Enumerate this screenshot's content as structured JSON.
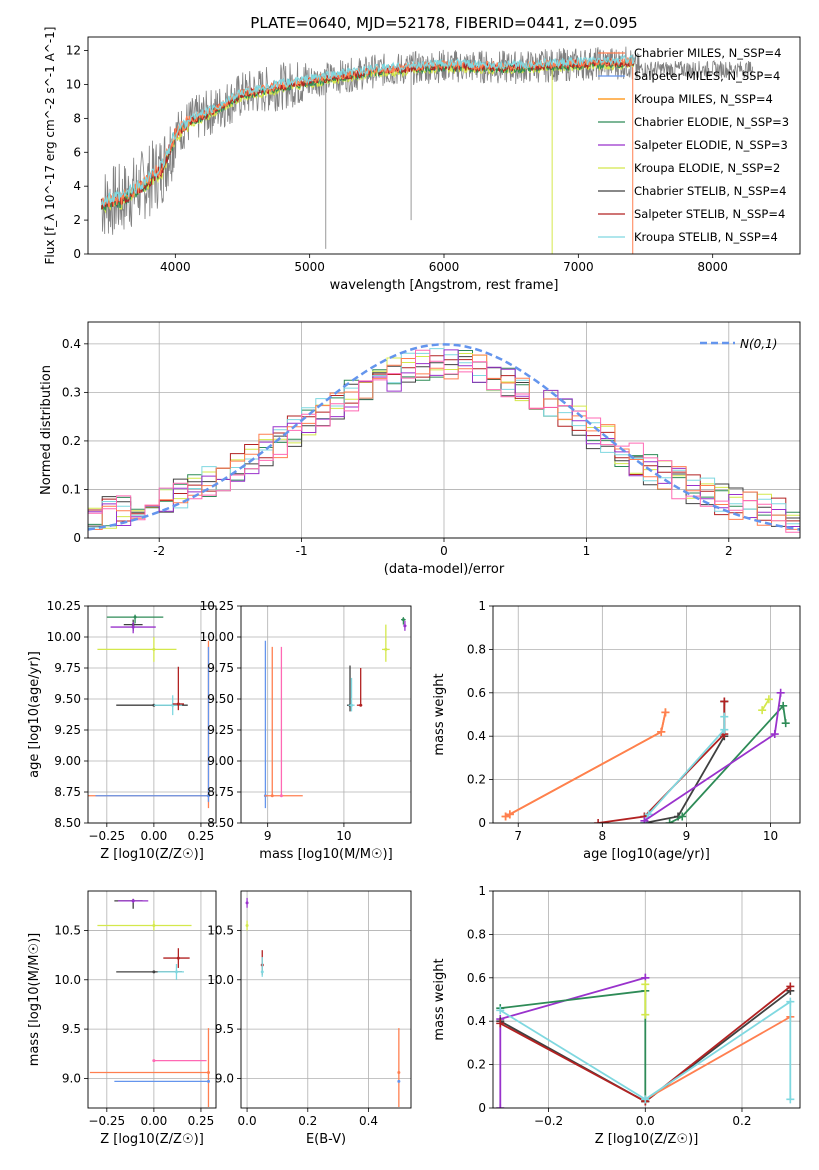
{
  "figure": {
    "title": "PLATE=0640, MJD=52178, FIBERID=0441, z=0.095"
  },
  "colors": {
    "observed": "#808080",
    "chabrier_miles": "#ff7f50",
    "salpeter_miles": "#6495ed",
    "kroupa_miles": "#ff8c00",
    "chabrier_elodie": "#2e8b57",
    "salpeter_elodie": "#9932cc",
    "kroupa_elodie": "#d4e84c",
    "chabrier_stelib": "#404040",
    "salpeter_stelib": "#b22222",
    "kroupa_stelib": "#7fd8e0",
    "normal": "#6495ed",
    "hist_pink": "#ff69b4"
  },
  "chart_data": [
    {
      "id": "spectrum",
      "type": "line",
      "xlabel": "wavelength [Angstrom, rest frame]",
      "ylabel": "Flux [f_λ 10^-17 erg cm^-2 s^-1 A^-1]",
      "xlim": [
        3350,
        8650
      ],
      "ylim": [
        0,
        12.8
      ],
      "xticks": [
        4000,
        5000,
        6000,
        7000,
        8000
      ],
      "yticks": [
        0,
        2,
        4,
        6,
        8,
        10,
        12
      ],
      "continuum": {
        "x": [
          3450,
          3600,
          3750,
          3900,
          4000,
          4100,
          4300,
          4500,
          4800,
          5000,
          5500,
          6000,
          6500,
          7000,
          7400
        ],
        "y": [
          3.0,
          3.2,
          4.0,
          5.0,
          7.0,
          7.8,
          8.5,
          9.4,
          9.9,
          10.2,
          10.8,
          11.1,
          11.0,
          11.2,
          11.3
        ]
      },
      "observed_extends_to": 8300,
      "legend": [
        {
          "label": "Chabrier MILES, N_SSP=4",
          "color": "#ff7f50"
        },
        {
          "label": "Salpeter MILES, N_SSP=4",
          "color": "#6495ed"
        },
        {
          "label": "Kroupa MILES, N_SSP=4",
          "color": "#ff8c00"
        },
        {
          "label": "Chabrier ELODIE, N_SSP=3",
          "color": "#2e8b57"
        },
        {
          "label": "Salpeter ELODIE, N_SSP=3",
          "color": "#9932cc"
        },
        {
          "label": "Kroupa ELODIE, N_SSP=2",
          "color": "#d4e84c"
        },
        {
          "label": "Chabrier STELIB, N_SSP=4",
          "color": "#404040"
        },
        {
          "label": "Salpeter STELIB, N_SSP=4",
          "color": "#b22222"
        },
        {
          "label": "Kroupa STELIB, N_SSP=4",
          "color": "#7fd8e0"
        }
      ],
      "legend_placement": "upper right",
      "grid": false
    },
    {
      "id": "residuals",
      "type": "area",
      "xlabel": "(data-model)/error",
      "ylabel": "Normed distribution",
      "xlim": [
        -2.5,
        2.5
      ],
      "ylim": [
        0,
        0.445
      ],
      "xticks": [
        -2,
        -1,
        0,
        1,
        2
      ],
      "yticks": [
        0.0,
        0.1,
        0.2,
        0.3,
        0.4
      ],
      "bins": 50,
      "hist_color_keys": [
        "chabrier_elodie",
        "kroupa_elodie",
        "chabrier_stelib",
        "salpeter_stelib",
        "kroupa_stelib",
        "salpeter_elodie",
        "chabrier_miles",
        "hist_pink"
      ],
      "legend": [
        {
          "label": "N(0,1)",
          "color": "#6495ed"
        }
      ],
      "legend_placement": "upper right",
      "grid": true
    },
    {
      "id": "age_vs_Z",
      "type": "scatter",
      "xlabel": "Z [log10(Z/Z☉)]",
      "ylabel": "age  [log10(age/yr)]",
      "xlim": [
        -0.35,
        0.33
      ],
      "ylim": [
        8.5,
        10.25
      ],
      "xticks": [
        -0.25,
        0.0,
        0.25
      ],
      "xtick_labels": [
        "−0.25",
        "0.00",
        "0.25"
      ],
      "yticks": [
        8.5,
        8.75,
        9.0,
        9.25,
        9.5,
        9.75,
        10.0,
        10.25
      ],
      "ytick_labels": [
        "8.50",
        "8.75",
        "9.00",
        "9.25",
        "9.50",
        "9.75",
        "10.00",
        "10.25"
      ],
      "points": [
        {
          "key": "chabrier_elodie",
          "x": -0.1,
          "y": 10.16,
          "xerr": [
            0.15,
            0.15
          ],
          "yerr": [
            0.05,
            0.02
          ]
        },
        {
          "key": "chabrier_stelib",
          "x": -0.11,
          "y": 10.1,
          "xerr": [
            0.05,
            0.05
          ],
          "yerr": [
            0.05,
            0.04
          ]
        },
        {
          "key": "salpeter_elodie",
          "x": -0.11,
          "y": 10.08,
          "xerr": [
            0.12,
            0.12
          ],
          "yerr": [
            0.05,
            0.04
          ]
        },
        {
          "key": "kroupa_elodie",
          "x": 0.0,
          "y": 9.9,
          "xerr": [
            0.3,
            0.12
          ],
          "yerr": [
            0.1,
            0.1
          ]
        },
        {
          "key": "chabrier_stelib",
          "x": 0.0,
          "y": 9.45,
          "xerr": [
            0.2,
            0.18
          ],
          "yerr": [
            0.0,
            0.0
          ]
        },
        {
          "key": "kroupa_stelib",
          "x": 0.1,
          "y": 9.45,
          "xerr": [
            0.1,
            0.05
          ],
          "yerr": [
            0.08,
            0.08
          ]
        },
        {
          "key": "salpeter_stelib",
          "x": 0.13,
          "y": 9.46,
          "xerr": [
            0.03,
            0.03
          ],
          "yerr": [
            0.05,
            0.3
          ]
        },
        {
          "key": "chabrier_miles",
          "x": 0.29,
          "y": 8.72,
          "xerr": [
            0.64,
            0.0
          ],
          "yerr": [
            0.1,
            1.25
          ]
        },
        {
          "key": "salpeter_miles",
          "x": 0.29,
          "y": 8.72,
          "xerr": [
            0.6,
            0.0
          ],
          "yerr": [
            0.05,
            1.2
          ]
        }
      ],
      "grid": true
    },
    {
      "id": "age_vs_mass",
      "type": "scatter",
      "xlabel": "mass [log10(M/M☉)]",
      "ylabel": "",
      "xlim": [
        8.65,
        10.88
      ],
      "ylim": [
        8.5,
        10.25
      ],
      "xticks": [
        9,
        10
      ],
      "yticks": [
        8.5,
        8.75,
        9.0,
        9.25,
        9.5,
        9.75,
        10.0,
        10.25
      ],
      "ytick_labels": [
        "8.50",
        "8.75",
        "9.00",
        "9.25",
        "9.50",
        "9.75",
        "10.00",
        "10.25"
      ],
      "points": [
        {
          "key": "chabrier_elodie",
          "x": 10.78,
          "y": 10.14,
          "xerr": [
            0.03,
            0.03
          ],
          "yerr": [
            0.04,
            0.02
          ]
        },
        {
          "key": "salpeter_elodie",
          "x": 10.8,
          "y": 10.09,
          "xerr": [
            0.02,
            0.02
          ],
          "yerr": [
            0.04,
            0.04
          ]
        },
        {
          "key": "kroupa_elodie",
          "x": 10.55,
          "y": 9.9,
          "xerr": [
            0.05,
            0.05
          ],
          "yerr": [
            0.1,
            0.2
          ]
        },
        {
          "key": "chabrier_stelib",
          "x": 10.08,
          "y": 9.45,
          "xerr": [
            0.04,
            0.04
          ],
          "yerr": [
            0.05,
            0.32
          ]
        },
        {
          "key": "kroupa_stelib",
          "x": 10.1,
          "y": 9.45,
          "xerr": [
            0.04,
            0.04
          ],
          "yerr": [
            0.05,
            0.22
          ]
        },
        {
          "key": "salpeter_stelib",
          "x": 10.22,
          "y": 9.45,
          "xerr": [
            0.05,
            0.02
          ],
          "yerr": [
            0.0,
            0.3
          ]
        },
        {
          "key": "salpeter_miles",
          "x": 8.97,
          "y": 8.72,
          "xerr": [
            0.0,
            0.0
          ],
          "yerr": [
            0.1,
            1.25
          ]
        },
        {
          "key": "chabrier_miles",
          "x": 9.06,
          "y": 8.72,
          "xerr": [
            0.1,
            0.4
          ],
          "yerr": [
            0.0,
            1.2
          ]
        },
        {
          "key": "hist_pink",
          "x": 9.18,
          "y": 8.72,
          "xerr": [
            0.0,
            0.0
          ],
          "yerr": [
            0.0,
            1.2
          ]
        }
      ],
      "grid": true
    },
    {
      "id": "weight_vs_age",
      "type": "line",
      "xlabel": "age  [log10(age/yr)]",
      "ylabel": "mass weight",
      "xlim": [
        6.7,
        10.35
      ],
      "ylim": [
        0,
        1.0
      ],
      "xticks": [
        7,
        8,
        9,
        10
      ],
      "yticks": [
        0.0,
        0.2,
        0.4,
        0.6,
        0.8,
        1.0
      ],
      "series": [
        {
          "key": "kroupa_miles",
          "x": [
            6.85,
            6.9,
            8.7,
            8.75
          ],
          "y": [
            0.03,
            0.04,
            0.42,
            0.51
          ]
        },
        {
          "key": "chabrier_miles",
          "x": [
            6.85,
            6.9,
            8.7,
            8.75
          ],
          "y": [
            0.03,
            0.04,
            0.42,
            0.51
          ]
        },
        {
          "key": "chabrier_stelib",
          "x": [
            8.5,
            8.9,
            9.45,
            9.45
          ],
          "y": [
            0.0,
            0.03,
            0.4,
            0.56
          ]
        },
        {
          "key": "salpeter_stelib",
          "x": [
            7.95,
            8.5,
            9.45,
            9.45
          ],
          "y": [
            0.0,
            0.03,
            0.41,
            0.56
          ]
        },
        {
          "key": "kroupa_stelib",
          "x": [
            8.5,
            8.55,
            9.45,
            9.45
          ],
          "y": [
            0.0,
            0.04,
            0.43,
            0.49
          ]
        },
        {
          "key": "chabrier_elodie",
          "x": [
            8.8,
            8.95,
            10.15,
            10.18
          ],
          "y": [
            0.0,
            0.03,
            0.54,
            0.46
          ]
        },
        {
          "key": "salpeter_elodie",
          "x": [
            8.5,
            10.05,
            10.12
          ],
          "y": [
            0.01,
            0.41,
            0.6
          ]
        },
        {
          "key": "kroupa_elodie",
          "x": [
            9.9,
            9.98
          ],
          "y": [
            0.52,
            0.57
          ]
        }
      ],
      "grid": true
    },
    {
      "id": "mass_vs_Z",
      "type": "scatter",
      "xlabel": "Z [log10(Z/Z☉)]",
      "ylabel": "mass [log10(M/M☉)]",
      "xlim": [
        -0.35,
        0.33
      ],
      "ylim": [
        8.7,
        10.9
      ],
      "xticks": [
        -0.25,
        0.0,
        0.25
      ],
      "xtick_labels": [
        "−0.25",
        "0.00",
        "0.25"
      ],
      "yticks": [
        9.0,
        9.5,
        10.0,
        10.5
      ],
      "ytick_labels": [
        "9.0",
        "9.5",
        "10.0",
        "10.5"
      ],
      "points": [
        {
          "key": "chabrier_stelib",
          "x": -0.11,
          "y": 10.8,
          "xerr": [
            0.1,
            0.05
          ],
          "yerr": [
            0.08,
            0.02
          ]
        },
        {
          "key": "salpeter_elodie",
          "x": -0.11,
          "y": 10.8,
          "xerr": [
            0.08,
            0.08
          ],
          "yerr": [
            0.02,
            0.02
          ]
        },
        {
          "key": "kroupa_elodie",
          "x": 0.0,
          "y": 10.55,
          "xerr": [
            0.3,
            0.2
          ],
          "yerr": [
            0.05,
            0.05
          ]
        },
        {
          "key": "chabrier_stelib",
          "x": 0.0,
          "y": 10.08,
          "xerr": [
            0.2,
            0.15
          ],
          "yerr": [
            0.0,
            0.0
          ]
        },
        {
          "key": "kroupa_stelib",
          "x": 0.12,
          "y": 10.08,
          "xerr": [
            0.1,
            0.04
          ],
          "yerr": [
            0.08,
            0.08
          ]
        },
        {
          "key": "salpeter_stelib",
          "x": 0.13,
          "y": 10.22,
          "xerr": [
            0.08,
            0.06
          ],
          "yerr": [
            0.1,
            0.1
          ]
        },
        {
          "key": "hist_pink",
          "x": 0.0,
          "y": 9.18,
          "xerr": [
            0.0,
            0.28
          ],
          "yerr": [
            0.0,
            0.0
          ]
        },
        {
          "key": "chabrier_miles",
          "x": 0.29,
          "y": 9.06,
          "xerr": [
            0.63,
            0.0
          ],
          "yerr": [
            0.35,
            0.45
          ]
        },
        {
          "key": "salpeter_miles",
          "x": 0.29,
          "y": 8.97,
          "xerr": [
            0.5,
            0.0
          ],
          "yerr": [
            0.0,
            0.0
          ]
        }
      ],
      "grid": true
    },
    {
      "id": "mass_vs_ebv",
      "type": "scatter",
      "xlabel": "E(B-V)",
      "ylabel": "",
      "xlim": [
        -0.02,
        0.54
      ],
      "ylim": [
        8.7,
        10.9
      ],
      "xticks": [
        0.0,
        0.2,
        0.4
      ],
      "xtick_labels": [
        "0.0",
        "0.2",
        "0.4"
      ],
      "yticks": [
        9.0,
        9.5,
        10.0,
        10.5
      ],
      "ytick_labels": [
        "9.0",
        "9.5",
        "10.0",
        "10.5"
      ],
      "points": [
        {
          "key": "salpeter_elodie",
          "x": 0.0,
          "y": 10.78,
          "xerr": [
            0.0,
            0.0
          ],
          "yerr": [
            0.05,
            0.05
          ]
        },
        {
          "key": "kroupa_elodie",
          "x": 0.0,
          "y": 10.55,
          "xerr": [
            0.0,
            0.0
          ],
          "yerr": [
            0.05,
            0.05
          ]
        },
        {
          "key": "salpeter_stelib",
          "x": 0.05,
          "y": 10.15,
          "xerr": [
            0.0,
            0.0
          ],
          "yerr": [
            0.1,
            0.15
          ]
        },
        {
          "key": "kroupa_stelib",
          "x": 0.05,
          "y": 10.08,
          "xerr": [
            0.0,
            0.0
          ],
          "yerr": [
            0.05,
            0.15
          ]
        },
        {
          "key": "chabrier_miles",
          "x": 0.5,
          "y": 9.06,
          "xerr": [
            0.0,
            0.0
          ],
          "yerr": [
            0.35,
            0.45
          ]
        },
        {
          "key": "salpeter_miles",
          "x": 0.5,
          "y": 8.97,
          "xerr": [
            0.0,
            0.0
          ],
          "yerr": [
            0.0,
            0.0
          ]
        }
      ],
      "grid": true
    },
    {
      "id": "weight_vs_Z",
      "type": "line",
      "xlabel": "Z [log10(Z/Z☉)]",
      "ylabel": "mass weight",
      "xlim": [
        -0.315,
        0.32
      ],
      "ylim": [
        0,
        1.0
      ],
      "xticks": [
        -0.2,
        0.0,
        0.2
      ],
      "xtick_labels": [
        "−0.2",
        "0.0",
        "0.2"
      ],
      "yticks": [
        0.0,
        0.2,
        0.4,
        0.6,
        0.8,
        1.0
      ],
      "series": [
        {
          "key": "salpeter_elodie",
          "x": [
            -0.3,
            -0.3,
            0.0,
            0.0
          ],
          "y": [
            0.0,
            0.41,
            0.6,
            0.6
          ]
        },
        {
          "key": "chabrier_elodie",
          "x": [
            -0.3,
            0.0,
            0.0
          ],
          "y": [
            0.46,
            0.54,
            0.03
          ]
        },
        {
          "key": "kroupa_elodie",
          "x": [
            0.0,
            0.0
          ],
          "y": [
            0.57,
            0.43
          ]
        },
        {
          "key": "chabrier_stelib",
          "x": [
            -0.3,
            0.0,
            0.3
          ],
          "y": [
            0.4,
            0.03,
            0.54
          ]
        },
        {
          "key": "salpeter_stelib",
          "x": [
            -0.3,
            0.0,
            0.3
          ],
          "y": [
            0.39,
            0.03,
            0.56
          ]
        },
        {
          "key": "chabrier_miles",
          "x": [
            0.0,
            0.3
          ],
          "y": [
            0.04,
            0.42
          ]
        },
        {
          "key": "kroupa_stelib",
          "x": [
            -0.3,
            0.0,
            0.3,
            0.3
          ],
          "y": [
            0.45,
            0.04,
            0.49,
            0.04
          ]
        }
      ],
      "grid": true
    }
  ]
}
